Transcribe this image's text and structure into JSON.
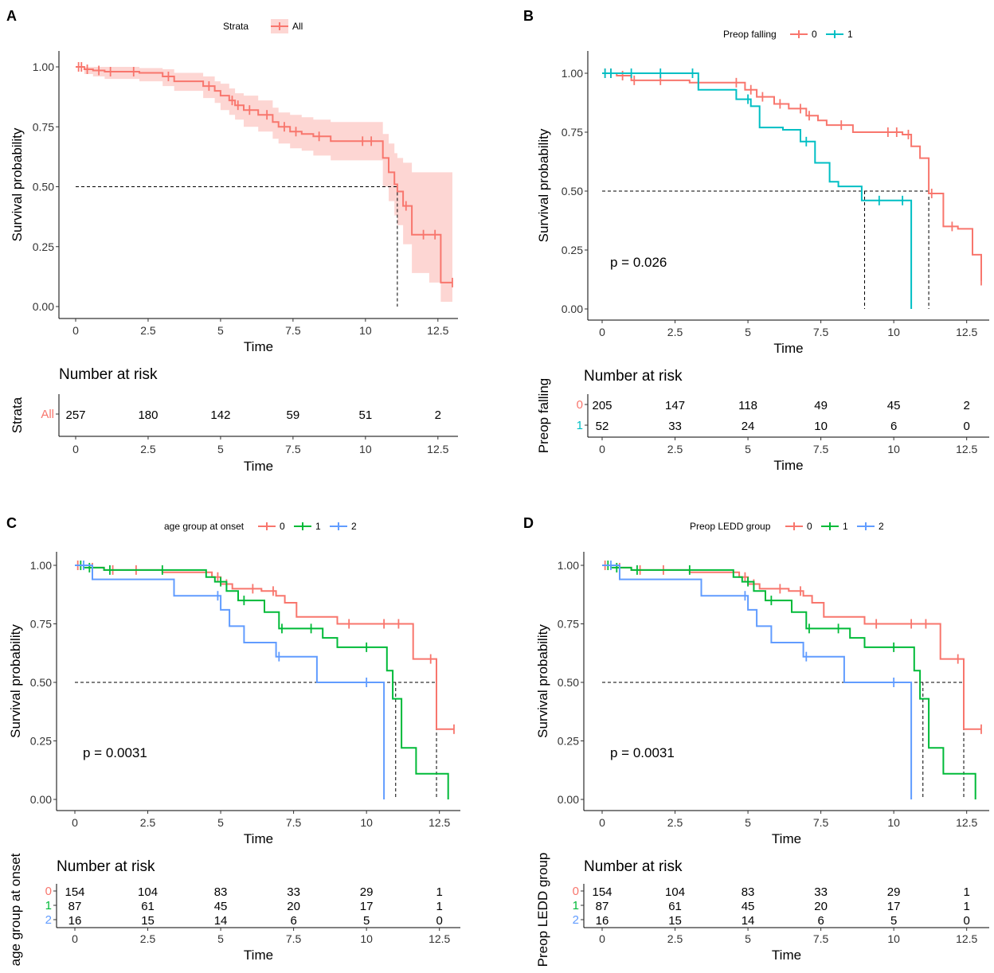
{
  "colors": {
    "c0": "#F8766D",
    "c1": "#00BA38",
    "c2": "#619CFF",
    "teal": "#00BFC4",
    "ci": "#F8766D"
  },
  "chart_data": [
    {
      "panel": "A",
      "type": "line",
      "subtype": "kaplan-meier",
      "legend_title": "Strata",
      "xlabel": "Time",
      "ylabel": "Survival probability",
      "xlim": [
        0,
        13
      ],
      "ylim": [
        0,
        1
      ],
      "xticks": [
        "0",
        "2.5",
        "5",
        "7.5",
        "10",
        "12.5"
      ],
      "yticks": [
        "0.00",
        "0.25",
        "0.50",
        "0.75",
        "1.00"
      ],
      "median_line": [
        11.1
      ],
      "series": [
        {
          "name": "All",
          "color": "#F8766D",
          "x": [
            0,
            0.3,
            0.6,
            1.0,
            2.2,
            3.0,
            3.4,
            4.4,
            4.8,
            5.0,
            5.3,
            5.5,
            5.8,
            6.3,
            6.8,
            7.0,
            7.4,
            7.8,
            8.2,
            8.8,
            10.6,
            10.8,
            11.0,
            11.1,
            11.3,
            11.6,
            12.2,
            12.6,
            13.0
          ],
          "y": [
            1.0,
            0.99,
            0.985,
            0.98,
            0.975,
            0.96,
            0.94,
            0.92,
            0.9,
            0.88,
            0.86,
            0.84,
            0.82,
            0.8,
            0.77,
            0.75,
            0.73,
            0.72,
            0.71,
            0.69,
            0.62,
            0.56,
            0.51,
            0.48,
            0.42,
            0.3,
            0.3,
            0.1,
            0.1
          ],
          "ci_upper": [
            1.0,
            1.0,
            1.0,
            1.0,
            0.995,
            0.99,
            0.975,
            0.96,
            0.94,
            0.93,
            0.91,
            0.89,
            0.88,
            0.86,
            0.83,
            0.81,
            0.8,
            0.79,
            0.78,
            0.77,
            0.72,
            0.68,
            0.64,
            0.62,
            0.6,
            0.56,
            0.56,
            0.56,
            0.56
          ],
          "ci_lower": [
            1.0,
            0.97,
            0.96,
            0.95,
            0.94,
            0.92,
            0.9,
            0.87,
            0.85,
            0.82,
            0.8,
            0.78,
            0.75,
            0.73,
            0.7,
            0.68,
            0.66,
            0.65,
            0.63,
            0.61,
            0.5,
            0.44,
            0.38,
            0.34,
            0.26,
            0.14,
            0.1,
            0.02,
            0.02
          ]
        }
      ],
      "censor_x": [
        0.1,
        0.2,
        0.4,
        0.8,
        1.2,
        2.0,
        3.2,
        4.6,
        5.4,
        5.6,
        6.0,
        6.6,
        7.2,
        7.6,
        8.4,
        9.9,
        10.2,
        11.4,
        12.0,
        12.4,
        13.0
      ],
      "risk_table": {
        "title": "Number at risk",
        "ylabel": "Strata",
        "rows": [
          {
            "label": "All",
            "color": "#F8766D",
            "values": [
              "257",
              "180",
              "142",
              "59",
              "51",
              "2"
            ]
          }
        ]
      }
    },
    {
      "panel": "B",
      "type": "line",
      "subtype": "kaplan-meier",
      "legend_title": "Preop falling",
      "xlabel": "Time",
      "ylabel": "Survival probability",
      "xlim": [
        0,
        13
      ],
      "ylim": [
        0,
        1
      ],
      "xticks": [
        "0",
        "2.5",
        "5",
        "7.5",
        "10",
        "12.5"
      ],
      "yticks": [
        "0.00",
        "0.25",
        "0.50",
        "0.75",
        "1.00"
      ],
      "pvalue": "p = 0.026",
      "median_line": [
        9.0,
        11.2
      ],
      "series": [
        {
          "name": "0",
          "color": "#F8766D",
          "x": [
            0,
            0.5,
            1.0,
            3.0,
            4.9,
            5.3,
            5.9,
            6.4,
            7.0,
            7.4,
            7.7,
            8.6,
            10.3,
            10.6,
            10.9,
            11.2,
            11.7,
            12.2,
            12.7,
            13.0
          ],
          "y": [
            1.0,
            0.99,
            0.97,
            0.96,
            0.93,
            0.9,
            0.87,
            0.85,
            0.82,
            0.8,
            0.78,
            0.75,
            0.74,
            0.69,
            0.64,
            0.49,
            0.35,
            0.34,
            0.23,
            0.12
          ],
          "censor_x": [
            0.1,
            0.3,
            0.7,
            1.1,
            2.0,
            3.3,
            4.6,
            5.1,
            5.5,
            6.1,
            6.8,
            7.1,
            8.2,
            9.8,
            10.1,
            10.5,
            11.3,
            12.0,
            13.0
          ]
        },
        {
          "name": "1",
          "color": "#00BFC4",
          "x": [
            0,
            3.3,
            4.6,
            5.1,
            5.4,
            6.2,
            6.8,
            7.3,
            7.8,
            8.1,
            8.9,
            9.2,
            10.6
          ],
          "y": [
            1.0,
            0.93,
            0.89,
            0.86,
            0.77,
            0.76,
            0.71,
            0.62,
            0.54,
            0.52,
            0.46,
            0.46,
            0.0
          ],
          "censor_x": [
            0.1,
            0.3,
            1.0,
            2.0,
            3.1,
            5.0,
            7.0,
            9.5,
            10.3
          ]
        }
      ],
      "risk_table": {
        "title": "Number at risk",
        "ylabel": "Preop falling",
        "rows": [
          {
            "label": "0",
            "color": "#F8766D",
            "values": [
              "205",
              "147",
              "118",
              "49",
              "45",
              "2"
            ]
          },
          {
            "label": "1",
            "color": "#00BFC4",
            "values": [
              "52",
              "33",
              "24",
              "10",
              "6",
              "0"
            ]
          }
        ]
      }
    },
    {
      "panel": "C",
      "type": "line",
      "subtype": "kaplan-meier",
      "legend_title": "age group at onset",
      "xlabel": "Time",
      "ylabel": "Survival probability",
      "xlim": [
        0,
        13
      ],
      "ylim": [
        0,
        1
      ],
      "xticks": [
        "0",
        "2.5",
        "5",
        "7.5",
        "10",
        "12.5"
      ],
      "yticks": [
        "0.00",
        "0.25",
        "0.50",
        "0.75",
        "1.00"
      ],
      "pvalue": "p = 0.0031",
      "median_line": [
        10.6,
        11.0,
        12.4
      ],
      "series": [
        {
          "name": "0",
          "color": "#F8766D",
          "x": [
            0,
            0.5,
            1.0,
            3.0,
            4.7,
            5.0,
            5.4,
            6.4,
            6.9,
            7.2,
            7.6,
            9.0,
            11.6,
            12.4,
            13.0
          ],
          "y": [
            1.0,
            0.99,
            0.98,
            0.97,
            0.95,
            0.92,
            0.9,
            0.89,
            0.87,
            0.84,
            0.78,
            0.75,
            0.6,
            0.3,
            0.3
          ],
          "censor_x": [
            0.1,
            0.6,
            1.3,
            2.1,
            4.9,
            5.2,
            6.1,
            6.8,
            9.4,
            10.6,
            11.1,
            12.2,
            13.0
          ]
        },
        {
          "name": "1",
          "color": "#00BA38",
          "x": [
            0,
            0.3,
            1.0,
            4.5,
            4.8,
            5.2,
            5.6,
            6.5,
            7.0,
            8.5,
            9.0,
            10.7,
            10.9,
            11.2,
            11.7,
            12.8
          ],
          "y": [
            1.0,
            0.99,
            0.98,
            0.95,
            0.93,
            0.89,
            0.85,
            0.8,
            0.73,
            0.69,
            0.65,
            0.55,
            0.43,
            0.22,
            0.11,
            0.0
          ],
          "censor_x": [
            0.2,
            0.5,
            1.2,
            3.0,
            5.0,
            5.8,
            7.1,
            8.1,
            10.0
          ]
        },
        {
          "name": "2",
          "color": "#619CFF",
          "x": [
            0,
            0.6,
            3.4,
            5.0,
            5.3,
            5.8,
            6.9,
            8.3,
            10.6
          ],
          "y": [
            1.0,
            0.94,
            0.87,
            0.81,
            0.74,
            0.67,
            0.61,
            0.5,
            0.0
          ],
          "censor_x": [
            0.3,
            4.9,
            7.0,
            10.0
          ]
        }
      ],
      "risk_table": {
        "title": "Number at risk",
        "ylabel": "age group at onset",
        "rows": [
          {
            "label": "0",
            "color": "#F8766D",
            "values": [
              "154",
              "104",
              "83",
              "33",
              "29",
              "1"
            ]
          },
          {
            "label": "1",
            "color": "#00BA38",
            "values": [
              "87",
              "61",
              "45",
              "20",
              "17",
              "1"
            ]
          },
          {
            "label": "2",
            "color": "#619CFF",
            "values": [
              "16",
              "15",
              "14",
              "6",
              "5",
              "0"
            ]
          }
        ]
      }
    },
    {
      "panel": "D",
      "type": "line",
      "subtype": "kaplan-meier",
      "legend_title": "Preop LEDD group",
      "xlabel": "Time",
      "ylabel": "Survival probability",
      "xlim": [
        0,
        13
      ],
      "ylim": [
        0,
        1
      ],
      "xticks": [
        "0",
        "2.5",
        "5",
        "7.5",
        "10",
        "12.5"
      ],
      "yticks": [
        "0.00",
        "0.25",
        "0.50",
        "0.75",
        "1.00"
      ],
      "pvalue": "p = 0.0031",
      "median_line": [
        10.6,
        11.0,
        12.4
      ],
      "series": [
        {
          "name": "0",
          "color": "#F8766D",
          "x": [
            0,
            0.5,
            1.0,
            3.0,
            4.7,
            5.0,
            5.4,
            6.4,
            6.9,
            7.2,
            7.6,
            9.0,
            11.6,
            12.4,
            13.0
          ],
          "y": [
            1.0,
            0.99,
            0.98,
            0.97,
            0.95,
            0.92,
            0.9,
            0.89,
            0.87,
            0.84,
            0.78,
            0.75,
            0.6,
            0.3,
            0.3
          ],
          "censor_x": [
            0.1,
            0.6,
            1.3,
            2.1,
            4.9,
            5.2,
            6.1,
            6.8,
            9.4,
            10.6,
            11.1,
            12.2,
            13.0
          ]
        },
        {
          "name": "1",
          "color": "#00BA38",
          "x": [
            0,
            0.3,
            1.0,
            4.5,
            4.8,
            5.2,
            5.6,
            6.5,
            7.0,
            8.5,
            9.0,
            10.7,
            10.9,
            11.2,
            11.7,
            12.8
          ],
          "y": [
            1.0,
            0.99,
            0.98,
            0.95,
            0.93,
            0.89,
            0.85,
            0.8,
            0.73,
            0.69,
            0.65,
            0.55,
            0.43,
            0.22,
            0.11,
            0.0
          ],
          "censor_x": [
            0.2,
            0.5,
            1.2,
            3.0,
            5.0,
            5.8,
            7.1,
            8.1,
            10.0
          ]
        },
        {
          "name": "2",
          "color": "#619CFF",
          "x": [
            0,
            0.6,
            3.4,
            5.0,
            5.3,
            5.8,
            6.9,
            8.3,
            10.6
          ],
          "y": [
            1.0,
            0.94,
            0.87,
            0.81,
            0.74,
            0.67,
            0.61,
            0.5,
            0.0
          ],
          "censor_x": [
            0.3,
            4.9,
            7.0,
            10.0
          ]
        }
      ],
      "risk_table": {
        "title": "Number at risk",
        "ylabel": "Preop LEDD group",
        "rows": [
          {
            "label": "0",
            "color": "#F8766D",
            "values": [
              "154",
              "104",
              "83",
              "33",
              "29",
              "1"
            ]
          },
          {
            "label": "1",
            "color": "#00BA38",
            "values": [
              "87",
              "61",
              "45",
              "20",
              "17",
              "1"
            ]
          },
          {
            "label": "2",
            "color": "#619CFF",
            "values": [
              "16",
              "15",
              "14",
              "6",
              "5",
              "0"
            ]
          }
        ]
      }
    }
  ]
}
